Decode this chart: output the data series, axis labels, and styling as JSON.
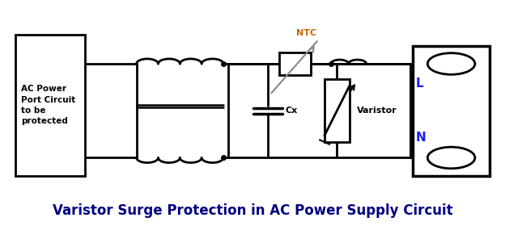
{
  "title": "Varistor Surge Protection in AC Power Supply Circuit",
  "title_color": "#000080",
  "title_fontsize": 12,
  "bg_color": "#ffffff",
  "line_color": "#000000",
  "ntc_color": "#cc6600",
  "label_L": "L",
  "label_N": "N",
  "label_NTC": "NTC",
  "label_Cx": "Cx",
  "label_Varistor": "Varistor",
  "label_AC": "AC Power\nPort Circuit\nto be\nprotected",
  "line_width": 2.0
}
